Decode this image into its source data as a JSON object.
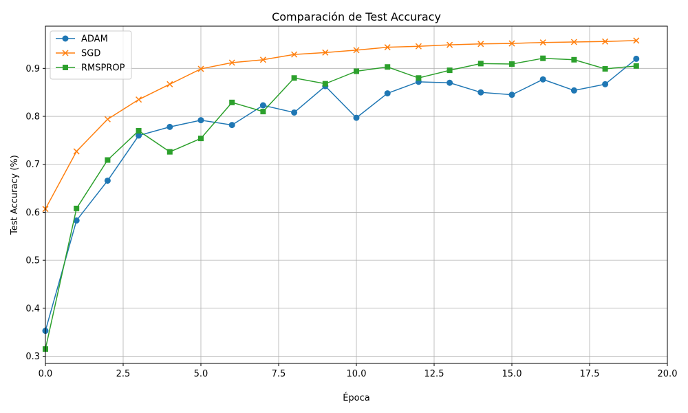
{
  "chart_data": {
    "type": "line",
    "title": "Comparación de Test Accuracy",
    "xlabel": "Época",
    "ylabel": "Test Accuracy (%)",
    "xlim": [
      0,
      20
    ],
    "ylim": [
      0.285,
      0.988
    ],
    "xticks": [
      0,
      2.5,
      5,
      7.5,
      10,
      12.5,
      15,
      17.5,
      20
    ],
    "xtick_labels": [
      "0.0",
      "2.5",
      "5.0",
      "7.5",
      "10.0",
      "12.5",
      "15.0",
      "17.5",
      "20.0"
    ],
    "yticks": [
      0.3,
      0.4,
      0.5,
      0.6,
      0.7,
      0.8,
      0.9
    ],
    "ytick_labels": [
      "0.3",
      "0.4",
      "0.5",
      "0.6",
      "0.7",
      "0.8",
      "0.9"
    ],
    "grid": true,
    "legend_position": "top-left",
    "x": [
      0,
      1,
      2,
      3,
      4,
      5,
      6,
      7,
      8,
      9,
      10,
      11,
      12,
      13,
      14,
      15,
      16,
      17,
      18,
      19
    ],
    "series": [
      {
        "name": "ADAM",
        "color": "#1f77b4",
        "marker": "circle",
        "values": [
          0.353,
          0.583,
          0.666,
          0.76,
          0.778,
          0.792,
          0.782,
          0.823,
          0.808,
          0.863,
          0.797,
          0.848,
          0.872,
          0.87,
          0.85,
          0.845,
          0.877,
          0.854,
          0.867,
          0.92
        ]
      },
      {
        "name": "SGD",
        "color": "#ff7f0e",
        "marker": "x",
        "values": [
          0.607,
          0.727,
          0.794,
          0.835,
          0.867,
          0.899,
          0.912,
          0.918,
          0.929,
          0.933,
          0.938,
          0.944,
          0.946,
          0.949,
          0.951,
          0.952,
          0.954,
          0.955,
          0.956,
          0.958
        ]
      },
      {
        "name": "RMSPROP",
        "color": "#2ca02c",
        "marker": "square",
        "values": [
          0.315,
          0.608,
          0.709,
          0.77,
          0.726,
          0.754,
          0.829,
          0.81,
          0.88,
          0.868,
          0.894,
          0.903,
          0.88,
          0.896,
          0.91,
          0.909,
          0.921,
          0.918,
          0.899,
          0.905
        ]
      }
    ]
  }
}
